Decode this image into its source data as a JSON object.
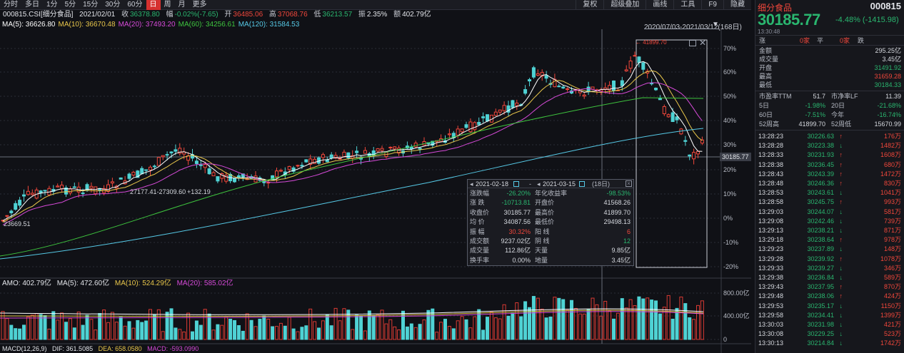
{
  "toolbar": {
    "periods": [
      "分时",
      "多日",
      "1分",
      "5分",
      "15分",
      "30分",
      "60分",
      "日",
      "周",
      "月",
      "更多"
    ],
    "active": "日",
    "tools": [
      "复权",
      "超级叠加",
      "画线",
      "工具",
      "F9",
      "隐藏"
    ]
  },
  "info": {
    "code_name": "000815.CSI[细分食品]",
    "date": "2021/02/01",
    "close_label": "收",
    "close": "36378.80",
    "amp_label": "幅",
    "amp": "-0.02%(-7.65)",
    "open_label": "开",
    "open": "36485.06",
    "high_label": "高",
    "high": "37068.76",
    "low_label": "低",
    "low": "36213.57",
    "swing_label": "振",
    "swing": "2.35%",
    "amount_label": "额",
    "amount": "402.79亿"
  },
  "ma": [
    {
      "label": "MA(5): 36626.80",
      "color": "#ffffff"
    },
    {
      "label": "MA(10): 36670.48",
      "color": "#e9c74b"
    },
    {
      "label": "MA(20): 37493.20",
      "color": "#d64ad8"
    },
    {
      "label": "MA(60): 34256.61",
      "color": "#3ec43e"
    },
    {
      "label": "MA(120): 31584.53",
      "color": "#56c9e6"
    }
  ],
  "range": "2020/07/03-2021/03/12(168日)",
  "axis_right": [
    "70%",
    "60%",
    "50%",
    "40%",
    "30%",
    "20%",
    "10%",
    "0%",
    "-10%",
    "-20%"
  ],
  "current_tag": "30185.77",
  "volume_axis": [
    "800.00亿",
    "400.00亿",
    "0"
  ],
  "annotations": {
    "low": "23669.51",
    "high": "41899.70",
    "measure": "27177.41-27309.60",
    "measure_delta": "+132.19"
  },
  "amo": {
    "amo": "AMO: 402.79亿",
    "ma5": "MA(5): 472.60亿",
    "ma10": "MA(10): 524.29亿",
    "ma20": "MA(20): 585.02亿"
  },
  "macd": {
    "label": "MACD(12,26,9)",
    "dif": "DIF: 361.5085",
    "dea": "DEA: 658.0580",
    "macd": "MACD: -593.0990"
  },
  "popup": {
    "from": "2021-02-18",
    "sep": "-",
    "to": "2021-03-15",
    "days": "(18日)",
    "rows": [
      [
        "涨跌幅",
        "-26.20%",
        "年化收益率",
        "-98.53%"
      ],
      [
        "涨 跌",
        "-10713.81",
        "开盘价",
        "41568.26"
      ],
      [
        "收盘价",
        "30185.77",
        "最高价",
        "41899.70"
      ],
      [
        "均 价",
        "34087.56",
        "最低价",
        "29498.13"
      ],
      [
        "振 幅",
        "30.32%",
        "阳 线",
        "6"
      ],
      [
        "成交额",
        "9237.02亿",
        "阴 线",
        "12"
      ],
      [
        "成交量",
        "112.86亿",
        "天量",
        "9.85亿"
      ],
      [
        "换手率",
        "0.00%",
        "地量",
        "3.45亿"
      ]
    ]
  },
  "panel": {
    "name": "细分食品",
    "code": "000815",
    "price": "30185.77",
    "change": "-4.48% (-1415.98)",
    "time": "13:30:48",
    "updown": {
      "up_label": "涨",
      "up_val": "0家",
      "flat_label": "平",
      "flat_val": "0家",
      "down_label": "跌"
    },
    "stats": [
      [
        "金额",
        "295.25亿"
      ],
      [
        "成交量",
        "3.45亿"
      ],
      [
        "开盘",
        "31491.92"
      ],
      [
        "最高",
        "31659.28"
      ],
      [
        "最低",
        "30184.33"
      ]
    ],
    "quad": [
      [
        "市盈率TTM",
        "51.7",
        "市净率LF",
        "11.39"
      ],
      [
        "5日",
        "-1.98%",
        "20日",
        "-21.68%"
      ],
      [
        "60日",
        "-7.51%",
        "今年",
        "-16.74%"
      ],
      [
        "52周高",
        "41899.70",
        "52周低",
        "15670.99"
      ]
    ],
    "ticks": [
      [
        "13:28:23",
        "30226.63",
        "176万"
      ],
      [
        "13:28:28",
        "30223.38",
        "1482万"
      ],
      [
        "13:28:33",
        "30231.93",
        "1608万"
      ],
      [
        "13:28:38",
        "30236.45",
        "680万"
      ],
      [
        "13:28:43",
        "30243.39",
        "1472万"
      ],
      [
        "13:28:48",
        "30246.36",
        "830万"
      ],
      [
        "13:28:53",
        "30243.61",
        "1041万"
      ],
      [
        "13:28:58",
        "30245.75",
        "993万"
      ],
      [
        "13:29:03",
        "30244.07",
        "581万"
      ],
      [
        "13:29:08",
        "30242.46",
        "739万"
      ],
      [
        "13:29:13",
        "30238.21",
        "871万"
      ],
      [
        "13:29:18",
        "30238.64",
        "978万"
      ],
      [
        "13:29:23",
        "30237.89",
        "148万"
      ],
      [
        "13:29:28",
        "30239.92",
        "1078万"
      ],
      [
        "13:29:33",
        "30239.27",
        "346万"
      ],
      [
        "13:29:38",
        "30236.84",
        "589万"
      ],
      [
        "13:29:43",
        "30237.95",
        "870万"
      ],
      [
        "13:29:48",
        "30238.06",
        "424万"
      ],
      [
        "13:29:53",
        "30235.17",
        "1150万"
      ],
      [
        "13:29:58",
        "30234.41",
        "1399万"
      ],
      [
        "13:30:03",
        "30231.98",
        "421万"
      ],
      [
        "13:30:08",
        "30229.25",
        "523万"
      ],
      [
        "13:30:13",
        "30214.84",
        "1742万"
      ]
    ]
  },
  "colors": {
    "up": "#f0473b",
    "down": "#2ab66f",
    "volume_up": "#d93a33",
    "volume_down": "#4fd2d4"
  }
}
